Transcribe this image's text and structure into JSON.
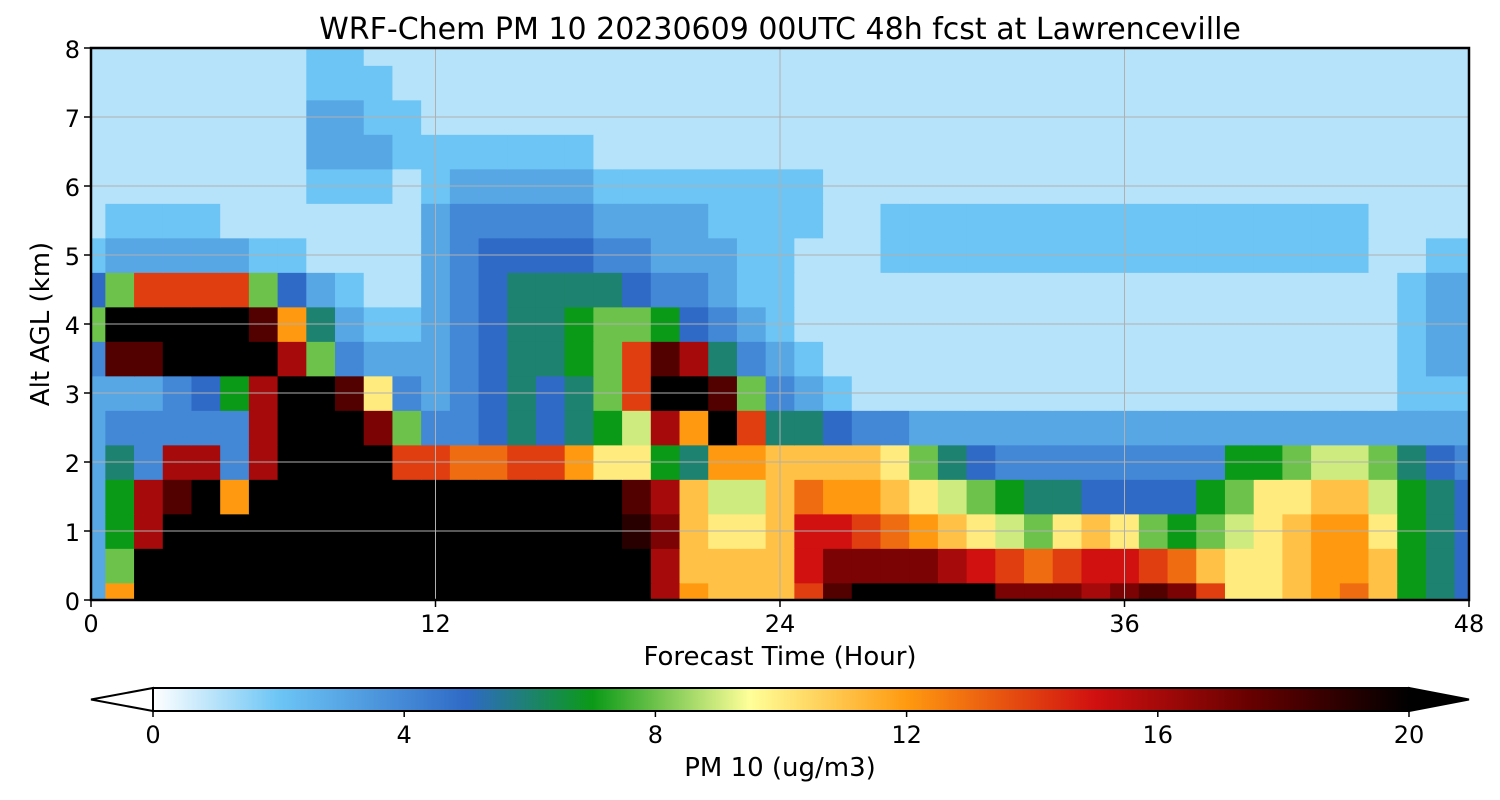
{
  "chart_data": {
    "type": "heatmap",
    "title": "WRF-Chem PM 10  20230609 00UTC 48h fcst at Lawrenceville",
    "xlabel": "Forecast Time (Hour)",
    "ylabel": "Alt AGL (km)",
    "xlim": [
      0,
      48
    ],
    "ylim": [
      0,
      8
    ],
    "x_ticks": [
      "0",
      "12",
      "24",
      "36",
      "48"
    ],
    "y_ticks": [
      "0",
      "1",
      "2",
      "3",
      "4",
      "5",
      "6",
      "7",
      "8"
    ],
    "grid": true,
    "colorbar": {
      "label": "PM 10  (ug/m3)",
      "range": [
        0,
        20
      ],
      "ticks": [
        "0",
        "4",
        "8",
        "12",
        "16",
        "20"
      ],
      "extend": "both",
      "stops": [
        {
          "v": 0,
          "c": "#ffffff"
        },
        {
          "v": 2,
          "c": "#6cc5f5"
        },
        {
          "v": 5,
          "c": "#2f6ac6"
        },
        {
          "v": 7,
          "c": "#0b9a17"
        },
        {
          "v": 9.5,
          "c": "#ffff99"
        },
        {
          "v": 12,
          "c": "#ff9a10"
        },
        {
          "v": 15,
          "c": "#d11010"
        },
        {
          "v": 17.5,
          "c": "#660000"
        },
        {
          "v": 20,
          "c": "#000000"
        }
      ]
    },
    "hours": [
      0,
      1,
      2,
      3,
      4,
      5,
      6,
      7,
      8,
      9,
      10,
      11,
      12,
      13,
      14,
      15,
      16,
      17,
      18,
      19,
      20,
      21,
      22,
      23,
      24,
      25,
      26,
      27,
      28,
      29,
      30,
      31,
      32,
      33,
      34,
      35,
      36,
      37,
      38,
      39,
      40,
      41,
      42,
      43,
      44,
      45,
      46,
      47,
      48
    ],
    "altitudes_km": [
      0,
      0.5,
      1,
      1.5,
      2,
      2.5,
      3,
      3.5,
      4,
      4.5,
      5,
      5.5,
      6,
      6.5,
      7,
      7.5,
      8
    ],
    "series": [
      {
        "values": [
          3,
          12,
          20,
          20,
          20,
          20,
          20,
          20,
          20,
          20,
          20,
          20,
          20,
          20,
          20,
          20,
          20,
          20,
          20,
          20,
          16,
          12,
          11,
          11,
          11,
          14,
          18,
          20,
          20,
          20,
          20,
          20,
          17,
          17,
          17,
          16,
          17,
          18,
          17,
          14,
          10,
          10,
          11,
          12,
          13,
          11,
          7,
          6,
          5
        ]
      },
      {
        "values": [
          3,
          8,
          20,
          20,
          20,
          20,
          20,
          20,
          20,
          20,
          20,
          20,
          20,
          20,
          20,
          20,
          20,
          20,
          20,
          20,
          16,
          11,
          11,
          11,
          11,
          15,
          17,
          17,
          17,
          17,
          16,
          15,
          14,
          13,
          14,
          15,
          15,
          14,
          13,
          11,
          10,
          10,
          11,
          12,
          12,
          11,
          7,
          6,
          5
        ]
      },
      {
        "values": [
          3,
          7,
          16,
          20,
          20,
          20,
          20,
          20,
          20,
          20,
          20,
          20,
          20,
          20,
          20,
          20,
          20,
          20,
          20,
          19,
          17,
          11,
          10,
          10,
          11,
          15,
          15,
          14,
          13,
          12,
          11,
          10,
          9,
          8,
          10,
          11,
          10,
          8,
          7,
          8,
          9,
          10,
          11,
          12,
          12,
          10,
          7,
          6,
          5
        ]
      },
      {
        "values": [
          3,
          7,
          16,
          18,
          20,
          12,
          20,
          20,
          20,
          20,
          20,
          20,
          20,
          20,
          20,
          20,
          20,
          20,
          20,
          18,
          16,
          11,
          9,
          9,
          11,
          13,
          12,
          12,
          11,
          10,
          9,
          8,
          7,
          6,
          6,
          5,
          5,
          5,
          5,
          7,
          8,
          10,
          10,
          11,
          11,
          9,
          7,
          6,
          5
        ]
      },
      {
        "values": [
          3,
          6,
          4,
          16,
          16,
          4,
          16,
          20,
          20,
          20,
          20,
          14,
          14,
          13,
          13,
          14,
          14,
          12,
          10,
          10,
          7,
          6,
          12,
          12,
          11,
          11,
          11,
          11,
          10,
          8,
          6,
          5,
          4,
          4,
          4,
          4,
          4,
          4,
          4,
          4,
          7,
          7,
          8,
          9,
          9,
          8,
          6,
          5,
          4
        ]
      },
      {
        "values": [
          3,
          4,
          4,
          4,
          4,
          4,
          16,
          20,
          20,
          20,
          17,
          8,
          4,
          4,
          5,
          6,
          5,
          6,
          7,
          9,
          16,
          12,
          20,
          14,
          6,
          6,
          5,
          4,
          4,
          3,
          3,
          3,
          3,
          3,
          3,
          3,
          3,
          3,
          3,
          3,
          3,
          3,
          3,
          3,
          3,
          3,
          3,
          3,
          3
        ]
      },
      {
        "values": [
          3,
          3,
          3,
          4,
          5,
          7,
          16,
          20,
          20,
          18,
          10,
          4,
          3,
          4,
          5,
          6,
          5,
          6,
          8,
          14,
          20,
          20,
          18,
          8,
          4,
          3,
          2,
          1,
          1,
          1,
          1,
          1,
          1,
          1,
          1,
          1,
          1,
          1,
          1,
          1,
          1,
          1,
          1,
          1,
          1,
          1,
          2,
          2,
          2
        ]
      },
      {
        "values": [
          4,
          18,
          18,
          20,
          20,
          20,
          20,
          16,
          8,
          4,
          3,
          3,
          3,
          4,
          5,
          6,
          6,
          7,
          8,
          14,
          18,
          16,
          6,
          4,
          3,
          2,
          1,
          1,
          1,
          1,
          1,
          1,
          1,
          1,
          1,
          1,
          1,
          1,
          1,
          1,
          1,
          1,
          1,
          1,
          1,
          1,
          2,
          3,
          3
        ]
      },
      {
        "values": [
          8,
          20,
          20,
          20,
          20,
          20,
          18,
          12,
          6,
          3,
          2,
          2,
          3,
          4,
          5,
          6,
          6,
          7,
          8,
          8,
          7,
          5,
          4,
          3,
          2,
          1,
          1,
          1,
          1,
          1,
          1,
          1,
          1,
          1,
          1,
          1,
          1,
          1,
          1,
          1,
          1,
          1,
          1,
          1,
          1,
          1,
          2,
          3,
          3
        ]
      },
      {
        "values": [
          5,
          8,
          14,
          14,
          14,
          14,
          8,
          5,
          3,
          2,
          1,
          1,
          3,
          4,
          5,
          6,
          6,
          6,
          6,
          5,
          4,
          4,
          3,
          2,
          2,
          1,
          1,
          1,
          1,
          1,
          1,
          1,
          1,
          1,
          1,
          1,
          1,
          1,
          1,
          1,
          1,
          1,
          1,
          1,
          1,
          1,
          2,
          3,
          3
        ]
      },
      {
        "values": [
          2,
          3,
          3,
          3,
          3,
          3,
          2,
          2,
          1,
          1,
          1,
          1,
          3,
          4,
          5,
          5,
          5,
          5,
          4,
          4,
          3,
          3,
          3,
          2,
          2,
          1,
          1,
          1,
          2,
          2,
          2,
          2,
          2,
          2,
          2,
          2,
          2,
          2,
          2,
          2,
          2,
          2,
          2,
          2,
          2,
          1,
          1,
          2,
          2
        ]
      },
      {
        "values": [
          1,
          2,
          2,
          2,
          2,
          1,
          1,
          1,
          1,
          1,
          1,
          1,
          3,
          4,
          4,
          4,
          4,
          4,
          3,
          3,
          3,
          3,
          2,
          2,
          2,
          2,
          1,
          1,
          2,
          2,
          2,
          2,
          2,
          2,
          2,
          2,
          2,
          2,
          2,
          2,
          2,
          2,
          2,
          2,
          2,
          1,
          1,
          1,
          1
        ]
      },
      {
        "values": [
          1,
          1,
          1,
          1,
          1,
          1,
          1,
          1,
          2,
          2,
          2,
          1,
          2,
          3,
          3,
          3,
          3,
          3,
          2,
          2,
          2,
          2,
          2,
          2,
          2,
          2,
          1,
          1,
          1,
          1,
          1,
          1,
          1,
          1,
          1,
          1,
          1,
          1,
          1,
          1,
          1,
          1,
          1,
          1,
          1,
          1,
          1,
          1,
          1
        ]
      },
      {
        "values": [
          1,
          1,
          1,
          1,
          1,
          1,
          1,
          1,
          3,
          3,
          3,
          2,
          2,
          2,
          2,
          2,
          2,
          2,
          1,
          1,
          1,
          1,
          1,
          1,
          1,
          1,
          1,
          1,
          1,
          1,
          1,
          1,
          1,
          1,
          1,
          1,
          1,
          1,
          1,
          1,
          1,
          1,
          1,
          1,
          1,
          1,
          1,
          1,
          1
        ]
      },
      {
        "values": [
          1,
          1,
          1,
          1,
          1,
          1,
          1,
          1,
          3,
          3,
          2,
          2,
          1,
          1,
          1,
          1,
          1,
          1,
          1,
          1,
          1,
          1,
          1,
          1,
          1,
          1,
          1,
          1,
          1,
          1,
          1,
          1,
          1,
          1,
          1,
          1,
          1,
          1,
          1,
          1,
          1,
          1,
          1,
          1,
          1,
          1,
          1,
          1,
          1
        ]
      },
      {
        "values": [
          1,
          1,
          1,
          1,
          1,
          1,
          1,
          1,
          2,
          2,
          2,
          1,
          1,
          1,
          1,
          1,
          1,
          1,
          1,
          1,
          1,
          1,
          1,
          1,
          1,
          1,
          1,
          1,
          1,
          1,
          1,
          1,
          1,
          1,
          1,
          1,
          1,
          1,
          1,
          1,
          1,
          1,
          1,
          1,
          1,
          1,
          1,
          1,
          1
        ]
      },
      {
        "values": [
          1,
          1,
          1,
          1,
          1,
          1,
          1,
          1,
          2,
          2,
          1,
          1,
          1,
          1,
          1,
          1,
          1,
          1,
          1,
          1,
          1,
          1,
          1,
          1,
          1,
          1,
          1,
          1,
          1,
          1,
          1,
          1,
          1,
          1,
          1,
          1,
          1,
          1,
          1,
          1,
          1,
          1,
          1,
          1,
          1,
          1,
          1,
          1,
          1
        ]
      }
    ]
  }
}
